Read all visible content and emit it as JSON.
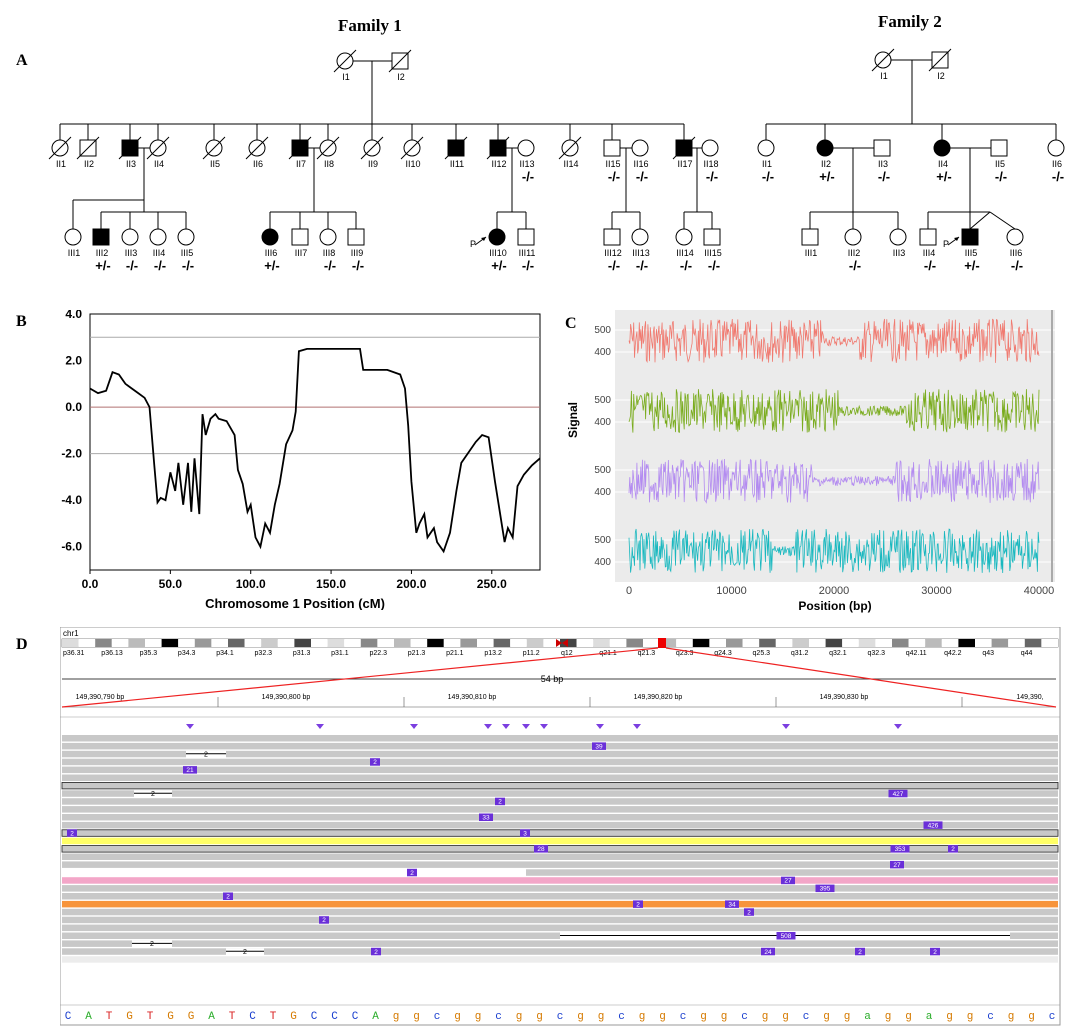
{
  "panels": {
    "A": "A",
    "B": "B",
    "C": "C",
    "D": "D"
  },
  "family1": {
    "title": "Family 1",
    "gen1": [
      {
        "id": "I1",
        "sex": "f",
        "aff": false,
        "dec": true
      },
      {
        "id": "I2",
        "sex": "m",
        "aff": false,
        "dec": true
      }
    ],
    "gen2": [
      {
        "id": "II1",
        "sex": "f",
        "aff": false,
        "dec": true,
        "g": ""
      },
      {
        "id": "II2",
        "sex": "m",
        "aff": false,
        "dec": true,
        "g": ""
      },
      {
        "id": "II3",
        "sex": "m",
        "aff": true,
        "dec": true,
        "g": ""
      },
      {
        "id": "II4",
        "sex": "f",
        "aff": false,
        "dec": true,
        "g": ""
      },
      {
        "id": "II5",
        "sex": "f",
        "aff": false,
        "dec": true,
        "g": ""
      },
      {
        "id": "II6",
        "sex": "f",
        "aff": false,
        "dec": true,
        "g": ""
      },
      {
        "id": "II7",
        "sex": "m",
        "aff": true,
        "dec": true,
        "g": ""
      },
      {
        "id": "II8",
        "sex": "f",
        "aff": false,
        "dec": true,
        "g": ""
      },
      {
        "id": "II9",
        "sex": "f",
        "aff": false,
        "dec": true,
        "g": ""
      },
      {
        "id": "II10",
        "sex": "f",
        "aff": false,
        "dec": true,
        "g": ""
      },
      {
        "id": "II11",
        "sex": "m",
        "aff": true,
        "dec": true,
        "g": ""
      },
      {
        "id": "II12",
        "sex": "m",
        "aff": true,
        "dec": true,
        "g": ""
      },
      {
        "id": "II13",
        "sex": "f",
        "aff": false,
        "dec": false,
        "g": "-/-"
      },
      {
        "id": "II14",
        "sex": "f",
        "aff": false,
        "dec": true,
        "g": ""
      },
      {
        "id": "II15",
        "sex": "m",
        "aff": false,
        "dec": false,
        "g": "-/-"
      },
      {
        "id": "II16",
        "sex": "f",
        "aff": false,
        "dec": false,
        "g": "-/-"
      },
      {
        "id": "II17",
        "sex": "m",
        "aff": true,
        "dec": true,
        "g": ""
      },
      {
        "id": "II18",
        "sex": "f",
        "aff": false,
        "dec": false,
        "g": "-/-"
      }
    ],
    "gen3": [
      {
        "id": "III1",
        "sex": "f",
        "aff": false,
        "g": ""
      },
      {
        "id": "III2",
        "sex": "m",
        "aff": true,
        "g": "+/-"
      },
      {
        "id": "III3",
        "sex": "f",
        "aff": false,
        "g": "-/-"
      },
      {
        "id": "III4",
        "sex": "f",
        "aff": false,
        "g": "-/-"
      },
      {
        "id": "III5",
        "sex": "f",
        "aff": false,
        "g": "-/-"
      },
      {
        "id": "III6",
        "sex": "f",
        "aff": true,
        "g": "+/-"
      },
      {
        "id": "III7",
        "sex": "m",
        "aff": false,
        "g": ""
      },
      {
        "id": "III8",
        "sex": "f",
        "aff": false,
        "g": "-/-"
      },
      {
        "id": "III9",
        "sex": "m",
        "aff": false,
        "g": "-/-"
      },
      {
        "id": "III10",
        "sex": "f",
        "aff": true,
        "g": "+/-",
        "proband": true
      },
      {
        "id": "III11",
        "sex": "m",
        "aff": false,
        "g": "-/-"
      },
      {
        "id": "III12",
        "sex": "m",
        "aff": false,
        "g": "-/-"
      },
      {
        "id": "III13",
        "sex": "f",
        "aff": false,
        "g": "-/-"
      },
      {
        "id": "III14",
        "sex": "f",
        "aff": false,
        "g": "-/-"
      },
      {
        "id": "III15",
        "sex": "m",
        "aff": false,
        "g": "-/-"
      }
    ]
  },
  "family2": {
    "title": "Family 2",
    "gen1": [
      {
        "id": "I1",
        "sex": "f",
        "aff": false,
        "dec": true
      },
      {
        "id": "I2",
        "sex": "m",
        "aff": false,
        "dec": true
      }
    ],
    "gen2": [
      {
        "id": "II1",
        "sex": "f",
        "aff": false,
        "g": "-/-"
      },
      {
        "id": "II2",
        "sex": "f",
        "aff": true,
        "g": "+/-"
      },
      {
        "id": "II3",
        "sex": "m",
        "aff": false,
        "g": "-/-"
      },
      {
        "id": "II4",
        "sex": "f",
        "aff": true,
        "g": "+/-"
      },
      {
        "id": "II5",
        "sex": "m",
        "aff": false,
        "g": "-/-"
      },
      {
        "id": "II6",
        "sex": "f",
        "aff": false,
        "g": "-/-"
      }
    ],
    "gen3": [
      {
        "id": "III1",
        "sex": "m",
        "aff": false,
        "g": ""
      },
      {
        "id": "III2",
        "sex": "f",
        "aff": false,
        "g": "-/-"
      },
      {
        "id": "III3",
        "sex": "f",
        "aff": false,
        "g": ""
      },
      {
        "id": "III4",
        "sex": "m",
        "aff": false,
        "g": "-/-"
      },
      {
        "id": "III5",
        "sex": "m",
        "aff": true,
        "g": "+/-",
        "proband": true
      },
      {
        "id": "III6",
        "sex": "f",
        "aff": false,
        "g": "-/-"
      }
    ]
  },
  "proband_marker": "P",
  "chart_data": [
    {
      "type": "line",
      "panel": "B",
      "xlabel": "Chromosome 1 Position (cM)",
      "ylabel": "",
      "xlim": [
        0,
        280
      ],
      "ylim": [
        -7,
        4
      ],
      "xticks": [
        "0.0",
        "50.0",
        "100.0",
        "150.0",
        "200.0",
        "250.0"
      ],
      "yticks": [
        "4.0",
        "2.0",
        "0.0",
        "-2.0",
        "-4.0",
        "-6.0"
      ],
      "hlines": [
        {
          "y": 3.0,
          "color": "#aaaaaa"
        },
        {
          "y": 0.0,
          "color": "#b07070"
        },
        {
          "y": -2.0,
          "color": "#aaaaaa"
        }
      ],
      "x": [
        0,
        5,
        10,
        14,
        18,
        22,
        26,
        30,
        34,
        37,
        40,
        42,
        44,
        47,
        50,
        53,
        55,
        58,
        61,
        63,
        65,
        68,
        70,
        72,
        75,
        78,
        80,
        85,
        90,
        92,
        95,
        98,
        100,
        103,
        106,
        109,
        112,
        115,
        118,
        122,
        126,
        128,
        130,
        135,
        150,
        168,
        170,
        185,
        193,
        196,
        198,
        200,
        203,
        205,
        208,
        210,
        214,
        216,
        220,
        224,
        228,
        231,
        235,
        240,
        244,
        248,
        252,
        255,
        258,
        260,
        263,
        266,
        270,
        275,
        280
      ],
      "y": [
        0.8,
        0.6,
        0.7,
        1.5,
        1.4,
        1.0,
        0.8,
        0.6,
        0.4,
        0.0,
        -2.5,
        -4.1,
        -3.9,
        -4.0,
        -2.8,
        -3.6,
        -2.4,
        -4.2,
        -2.4,
        -4.5,
        -2.2,
        -4.6,
        -0.3,
        -1.2,
        -0.5,
        -0.3,
        -0.5,
        -0.6,
        -1.2,
        -2.7,
        -3.3,
        -4.5,
        -4.2,
        -5.6,
        -6.0,
        -5.0,
        -5.4,
        -4.2,
        -3.3,
        -1.6,
        -1.0,
        -0.2,
        2.4,
        2.5,
        2.5,
        2.5,
        1.6,
        1.6,
        1.4,
        0.8,
        -0.8,
        -3.2,
        -5.4,
        -5.0,
        -4.6,
        -5.6,
        -5.2,
        -5.8,
        -6.2,
        -5.4,
        -3.6,
        -2.4,
        -2.0,
        -1.5,
        -1.2,
        -1.3,
        -3.2,
        -4.5,
        -5.8,
        -5.2,
        -5.6,
        -3.4,
        -2.9,
        -2.5,
        -2.2
      ]
    },
    {
      "type": "line",
      "panel": "C",
      "xlabel": "Position (bp)",
      "ylabel": "Signal",
      "xlim": [
        0,
        40000
      ],
      "xticks": [
        "0",
        "10000",
        "20000",
        "30000",
        "40000"
      ],
      "yticks": [
        "500",
        "400"
      ],
      "series": [
        {
          "color": "#f07a70",
          "flat_range": [
            19000,
            22500
          ]
        },
        {
          "color": "#7aac1e",
          "flat_range": [
            20500,
            27000
          ]
        },
        {
          "color": "#b38bf0",
          "flat_range": [
            18000,
            26000
          ]
        },
        {
          "color": "#19b8bf",
          "flat_range": [
            14000,
            16000
          ]
        }
      ]
    }
  ],
  "igv": {
    "chrom": "chr1",
    "bands": [
      "p36.31",
      "p36.13",
      "p35.3",
      "p34.3",
      "p34.1",
      "p32.3",
      "p31.3",
      "p31.1",
      "p22.3",
      "p21.3",
      "p21.1",
      "p13.2",
      "p11.2",
      "q12",
      "q21.1",
      "q21.3",
      "q23.3",
      "q24.3",
      "q25.3",
      "q31.2",
      "q32.1",
      "q32.3",
      "q42.11",
      "q42.2",
      "q43",
      "q44"
    ],
    "span": "54 bp",
    "positions": [
      "149,390,790 bp",
      "149,390,800 bp",
      "149,390,810 bp",
      "149,390,820 bp",
      "149,390,830 bp",
      "149,390,"
    ],
    "sequence": [
      "C",
      "A",
      "T",
      "G",
      "T",
      "G",
      "G",
      "A",
      "T",
      "C",
      "T",
      "G",
      "C",
      "C",
      "C",
      "A",
      "g",
      "g",
      "c",
      "g",
      "g",
      "c",
      "g",
      "g",
      "c",
      "g",
      "g",
      "c",
      "g",
      "g",
      "c",
      "g",
      "g",
      "c",
      "g",
      "g",
      "c",
      "g",
      "g",
      "a",
      "g",
      "g",
      "a",
      "g",
      "g",
      "c",
      "g",
      "g",
      "c"
    ],
    "base_colors": {
      "A": "#2bad2b",
      "C": "#1a3fcf",
      "G": "#d57a00",
      "T": "#d92020"
    },
    "insertion_labels": [
      "39",
      "2",
      "21",
      "2",
      "427",
      "33",
      "426",
      "2",
      "3",
      "28",
      "353",
      "2",
      "2",
      "27",
      "27",
      "395",
      "2",
      "2",
      "34",
      "2",
      "2",
      "508",
      "2",
      "24",
      "2",
      "2",
      "2",
      "3",
      "2",
      "2"
    ]
  }
}
